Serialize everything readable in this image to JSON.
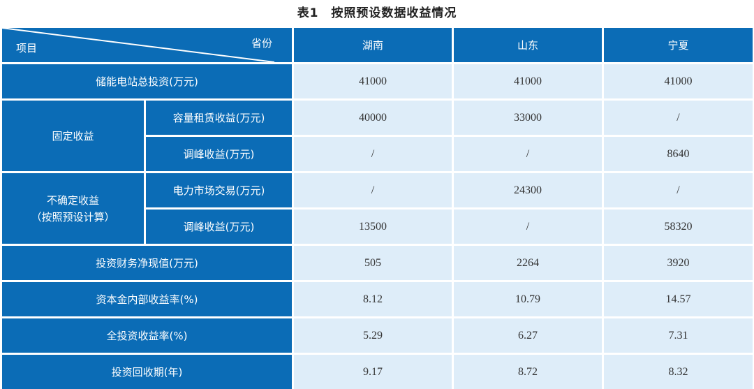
{
  "title": "表1　按照预设数据收益情况",
  "colors": {
    "header": "#0b6cb6",
    "cell": "#deedf9"
  },
  "header": {
    "corner_top": "省份",
    "corner_bottom": "项目",
    "provinces": [
      "湖南",
      "山东",
      "宁夏"
    ]
  },
  "groups": {
    "fixed": "固定收益",
    "uncertain_line1": "不确定收益",
    "uncertain_line2": "（按照预设计算）"
  },
  "rows": [
    {
      "label": "储能电站总投资(万元)",
      "values": [
        "41000",
        "41000",
        "41000"
      ]
    },
    {
      "label": "容量租赁收益(万元)",
      "values": [
        "40000",
        "33000",
        "/"
      ]
    },
    {
      "label": "调峰收益(万元)",
      "values": [
        "/",
        "/",
        "8640"
      ]
    },
    {
      "label": "电力市场交易(万元)",
      "values": [
        "/",
        "24300",
        "/"
      ]
    },
    {
      "label": "调峰收益(万元)",
      "values": [
        "13500",
        "/",
        "58320"
      ]
    },
    {
      "label": "投资财务净现值(万元)",
      "values": [
        "505",
        "2264",
        "3920"
      ]
    },
    {
      "label": "资本金内部收益率(%)",
      "values": [
        "8.12",
        "10.79",
        "14.57"
      ]
    },
    {
      "label": "全投资收益率(%)",
      "values": [
        "5.29",
        "6.27",
        "7.31"
      ]
    },
    {
      "label": "投资回收期(年)",
      "values": [
        "9.17",
        "8.72",
        "8.32"
      ]
    }
  ]
}
